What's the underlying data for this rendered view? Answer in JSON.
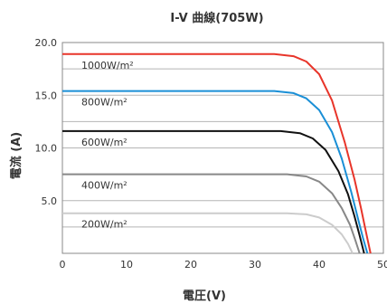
{
  "chart_data": {
    "type": "line",
    "title": "I-V 曲線(705W)",
    "xlabel": "電圧(V)",
    "ylabel": "電流 (A)",
    "xlim": [
      0,
      50
    ],
    "ylim": [
      0,
      20
    ],
    "x_ticks": [
      "0",
      "10",
      "20",
      "30",
      "40",
      "50"
    ],
    "y_ticks": [
      "20.0",
      "15.0",
      "10.0",
      "5.0"
    ],
    "grid": "horizontal",
    "series": [
      {
        "name": "1000W/m²",
        "color": "#e8352a",
        "x": [
          0,
          33,
          36,
          38,
          40,
          42,
          44,
          45.5,
          46.5,
          47.3,
          48.0
        ],
        "y": [
          18.9,
          18.9,
          18.7,
          18.2,
          17.0,
          14.5,
          10.5,
          7.0,
          4.3,
          2.0,
          0
        ]
      },
      {
        "name": "800W/m²",
        "color": "#1a8fd6",
        "x": [
          0,
          33,
          36,
          38,
          40,
          42,
          43.5,
          45.0,
          46.0,
          46.8,
          47.5
        ],
        "y": [
          15.4,
          15.4,
          15.2,
          14.7,
          13.6,
          11.5,
          9.0,
          5.8,
          3.4,
          1.5,
          0
        ]
      },
      {
        "name": "600W/m²",
        "color": "#111111",
        "x": [
          0,
          34,
          37,
          39,
          41,
          43,
          44.5,
          45.5,
          46.3,
          47.0
        ],
        "y": [
          11.6,
          11.6,
          11.4,
          10.9,
          9.8,
          7.8,
          5.6,
          3.5,
          1.7,
          0
        ]
      },
      {
        "name": "400W/m²",
        "color": "#888888",
        "x": [
          0,
          35,
          38,
          40,
          42,
          43.5,
          44.8,
          45.6,
          46.3
        ],
        "y": [
          7.5,
          7.5,
          7.3,
          6.8,
          5.7,
          4.3,
          2.7,
          1.3,
          0
        ]
      },
      {
        "name": "200W/m²",
        "color": "#cccccc",
        "x": [
          0,
          35,
          38,
          40,
          42,
          43.5,
          44.5,
          45.2
        ],
        "y": [
          3.8,
          3.8,
          3.7,
          3.4,
          2.7,
          1.8,
          0.9,
          0
        ]
      }
    ]
  }
}
